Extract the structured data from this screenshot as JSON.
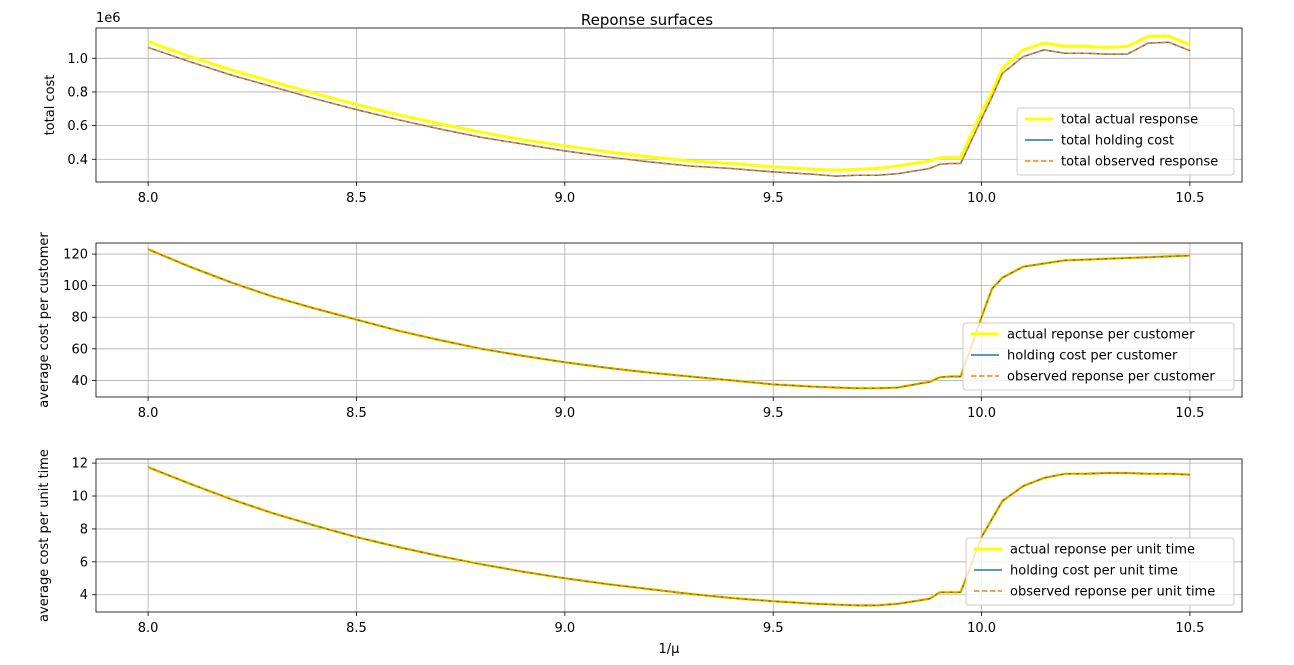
{
  "figure_title": "Reponse surfaces",
  "chart_data": [
    {
      "type": "line",
      "ylabel": "total cost",
      "xlabel": "",
      "offset_text": "1e6",
      "xlim": [
        7.875,
        10.625
      ],
      "ylim": [
        0.265,
        1.18
      ],
      "xticks": [
        8.0,
        8.5,
        9.0,
        9.5,
        10.0,
        10.5
      ],
      "xtick_labels": [
        "8.0",
        "8.5",
        "9.0",
        "9.5",
        "10.0",
        "10.5"
      ],
      "yticks": [
        0.4,
        0.6,
        0.8,
        1.0
      ],
      "ytick_labels": [
        "0.4",
        "0.6",
        "0.8",
        "1.0"
      ],
      "grid": true,
      "legend_position": "lower right",
      "x": [
        8.0,
        8.1,
        8.2,
        8.3,
        8.4,
        8.5,
        8.6,
        8.7,
        8.8,
        8.9,
        9.0,
        9.1,
        9.2,
        9.3,
        9.4,
        9.5,
        9.6,
        9.65,
        9.7,
        9.75,
        9.8,
        9.85,
        9.875,
        9.9,
        9.925,
        9.95,
        10.0,
        10.025,
        10.05,
        10.1,
        10.15,
        10.2,
        10.25,
        10.3,
        10.35,
        10.4,
        10.45,
        10.5
      ],
      "series": [
        {
          "name": "total actual response",
          "color": "#ffff00",
          "style": "solid",
          "values": [
            1.1,
            1.01,
            0.93,
            0.86,
            0.79,
            0.725,
            0.665,
            0.61,
            0.56,
            0.515,
            0.48,
            0.445,
            0.415,
            0.39,
            0.375,
            0.355,
            0.34,
            0.335,
            0.34,
            0.345,
            0.36,
            0.38,
            0.39,
            0.41,
            0.41,
            0.41,
            0.68,
            0.8,
            0.94,
            1.05,
            1.09,
            1.07,
            1.07,
            1.065,
            1.07,
            1.13,
            1.13,
            1.08
          ]
        },
        {
          "name": "total holding cost",
          "color": "#1f77b4",
          "style": "solid",
          "values": [
            1.065,
            0.98,
            0.9,
            0.83,
            0.76,
            0.695,
            0.635,
            0.58,
            0.53,
            0.49,
            0.45,
            0.415,
            0.385,
            0.36,
            0.345,
            0.325,
            0.31,
            0.3,
            0.305,
            0.305,
            0.315,
            0.335,
            0.345,
            0.37,
            0.375,
            0.375,
            0.64,
            0.77,
            0.91,
            1.01,
            1.05,
            1.03,
            1.03,
            1.025,
            1.025,
            1.09,
            1.095,
            1.045
          ]
        },
        {
          "name": "total observed response",
          "color": "#ff7f0e",
          "style": "dashed",
          "values": [
            1.065,
            0.98,
            0.9,
            0.83,
            0.76,
            0.695,
            0.635,
            0.58,
            0.53,
            0.49,
            0.45,
            0.415,
            0.385,
            0.36,
            0.345,
            0.325,
            0.31,
            0.3,
            0.305,
            0.305,
            0.315,
            0.335,
            0.345,
            0.37,
            0.375,
            0.375,
            0.64,
            0.77,
            0.91,
            1.01,
            1.05,
            1.03,
            1.03,
            1.025,
            1.025,
            1.09,
            1.095,
            1.045
          ]
        }
      ]
    },
    {
      "type": "line",
      "ylabel": "average cost per customer",
      "xlabel": "",
      "xlim": [
        7.875,
        10.625
      ],
      "ylim": [
        29.5,
        127
      ],
      "xticks": [
        8.0,
        8.5,
        9.0,
        9.5,
        10.0,
        10.5
      ],
      "xtick_labels": [
        "8.0",
        "8.5",
        "9.0",
        "9.5",
        "10.0",
        "10.5"
      ],
      "yticks": [
        40,
        60,
        80,
        100,
        120
      ],
      "ytick_labels": [
        "40",
        "60",
        "80",
        "100",
        "120"
      ],
      "grid": true,
      "legend_position": "lower right",
      "x": [
        8.0,
        8.1,
        8.2,
        8.3,
        8.4,
        8.5,
        8.6,
        8.7,
        8.8,
        8.9,
        9.0,
        9.1,
        9.2,
        9.3,
        9.4,
        9.5,
        9.6,
        9.65,
        9.7,
        9.75,
        9.8,
        9.85,
        9.875,
        9.9,
        9.925,
        9.95,
        10.0,
        10.025,
        10.05,
        10.1,
        10.15,
        10.2,
        10.25,
        10.3,
        10.35,
        10.4,
        10.45,
        10.5
      ],
      "series": [
        {
          "name": "actual reponse per customer",
          "color": "#ffff00",
          "style": "solid",
          "values": [
            123,
            112,
            102,
            93,
            85.5,
            78.5,
            71.5,
            65.5,
            60,
            55.5,
            51.5,
            48,
            45,
            42.5,
            40,
            37.5,
            36,
            35.5,
            35,
            35,
            35.5,
            38,
            39,
            42,
            42.5,
            42.5,
            80,
            98,
            105,
            112,
            114,
            116,
            116.5,
            117,
            117.5,
            118,
            118.5,
            119
          ]
        },
        {
          "name": "holding cost per customer",
          "color": "#1f77b4",
          "style": "solid",
          "values": [
            123,
            112,
            102,
            93,
            85.5,
            78.5,
            71.5,
            65.5,
            60,
            55.5,
            51.5,
            48,
            45,
            42.5,
            40,
            37.5,
            36,
            35.5,
            35,
            35,
            35.5,
            38,
            39,
            42,
            42.5,
            42.5,
            80,
            98,
            105,
            112,
            114,
            116,
            116.5,
            117,
            117.5,
            118,
            118.5,
            119
          ]
        },
        {
          "name": "observed reponse per customer",
          "color": "#ff7f0e",
          "style": "dashed",
          "values": [
            123,
            112,
            102,
            93,
            85.5,
            78.5,
            71.5,
            65.5,
            60,
            55.5,
            51.5,
            48,
            45,
            42.5,
            40,
            37.5,
            36,
            35.5,
            35,
            35,
            35.5,
            38,
            39,
            42,
            42.5,
            42.5,
            80,
            98,
            105,
            112,
            114,
            116,
            116.5,
            117,
            117.5,
            118,
            118.5,
            119
          ]
        }
      ]
    },
    {
      "type": "line",
      "ylabel": "average cost per unit time",
      "xlabel": "1/μ",
      "xlim": [
        7.875,
        10.625
      ],
      "ylim": [
        2.95,
        12.25
      ],
      "xticks": [
        8.0,
        8.5,
        9.0,
        9.5,
        10.0,
        10.5
      ],
      "xtick_labels": [
        "8.0",
        "8.5",
        "9.0",
        "9.5",
        "10.0",
        "10.5"
      ],
      "yticks": [
        4,
        6,
        8,
        10,
        12
      ],
      "ytick_labels": [
        "4",
        "6",
        "8",
        "10",
        "12"
      ],
      "grid": true,
      "legend_position": "lower right",
      "x": [
        8.0,
        8.1,
        8.2,
        8.3,
        8.4,
        8.5,
        8.6,
        8.7,
        8.8,
        8.9,
        9.0,
        9.1,
        9.2,
        9.3,
        9.4,
        9.5,
        9.6,
        9.65,
        9.7,
        9.75,
        9.8,
        9.85,
        9.875,
        9.9,
        9.925,
        9.95,
        10.0,
        10.025,
        10.05,
        10.1,
        10.15,
        10.2,
        10.25,
        10.3,
        10.35,
        10.4,
        10.45,
        10.5
      ],
      "series": [
        {
          "name": "actual reponse per unit time",
          "color": "#ffff00",
          "style": "solid",
          "values": [
            11.75,
            10.75,
            9.8,
            8.95,
            8.2,
            7.5,
            6.9,
            6.35,
            5.85,
            5.4,
            5.0,
            4.65,
            4.35,
            4.05,
            3.8,
            3.6,
            3.45,
            3.4,
            3.35,
            3.35,
            3.45,
            3.65,
            3.75,
            4.15,
            4.15,
            4.15,
            7.5,
            8.6,
            9.7,
            10.6,
            11.1,
            11.35,
            11.35,
            11.4,
            11.4,
            11.35,
            11.35,
            11.3
          ]
        },
        {
          "name": "holding cost per unit time",
          "color": "#1f77b4",
          "style": "solid",
          "values": [
            11.75,
            10.75,
            9.8,
            8.95,
            8.2,
            7.5,
            6.9,
            6.35,
            5.85,
            5.4,
            5.0,
            4.65,
            4.35,
            4.05,
            3.8,
            3.6,
            3.45,
            3.4,
            3.35,
            3.35,
            3.45,
            3.65,
            3.75,
            4.15,
            4.15,
            4.15,
            7.5,
            8.6,
            9.7,
            10.6,
            11.1,
            11.35,
            11.35,
            11.4,
            11.4,
            11.35,
            11.35,
            11.3
          ]
        },
        {
          "name": "observed reponse per unit time",
          "color": "#ff7f0e",
          "style": "dashed",
          "values": [
            11.75,
            10.75,
            9.8,
            8.95,
            8.2,
            7.5,
            6.9,
            6.35,
            5.85,
            5.4,
            5.0,
            4.65,
            4.35,
            4.05,
            3.8,
            3.6,
            3.45,
            3.4,
            3.35,
            3.35,
            3.45,
            3.65,
            3.75,
            4.15,
            4.15,
            4.15,
            7.5,
            8.6,
            9.7,
            10.6,
            11.1,
            11.35,
            11.35,
            11.4,
            11.4,
            11.35,
            11.35,
            11.3
          ]
        }
      ]
    }
  ]
}
